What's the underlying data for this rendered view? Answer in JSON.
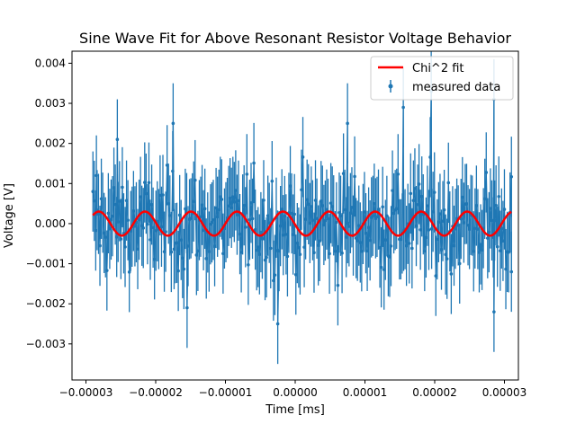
{
  "chart_data": {
    "type": "scatter",
    "title": "Sine Wave Fit for Above Resonant Resistor Voltage Behavior",
    "xlabel": "Time [ms]",
    "ylabel": "Voltage [V]",
    "xlim": [
      -3.2e-05,
      3.2e-05
    ],
    "ylim": [
      -0.0039,
      0.0043
    ],
    "grid": false,
    "legend_position": "top-right",
    "x_ticks": [
      -3e-05,
      -2e-05,
      -1e-05,
      0.0,
      1e-05,
      2e-05,
      3e-05
    ],
    "x_tick_labels": [
      "−0.00003",
      "−0.00002",
      "−0.00001",
      "0.00000",
      "0.00001",
      "0.00002",
      "0.00003"
    ],
    "y_ticks": [
      -0.003,
      -0.002,
      -0.001,
      0.0,
      0.001,
      0.002,
      0.003,
      0.004
    ],
    "y_tick_labels": [
      "−0.003",
      "−0.002",
      "−0.001",
      "0.000",
      "0.001",
      "0.002",
      "0.003",
      "0.004"
    ],
    "series": [
      {
        "name": "Chi^2 fit",
        "kind": "line",
        "color": "#ff0000",
        "model": "sine",
        "amplitude": 0.0003,
        "period": 6.6e-06,
        "phase_time": -2.32e-05,
        "x_range": [
          -2.9e-05,
          3.1e-05
        ]
      },
      {
        "name": "measured data",
        "kind": "errorbar",
        "color": "#1f77b4",
        "y_error": 0.001,
        "x_range": [
          -2.9e-05,
          3.1e-05
        ],
        "count": 300,
        "representative_points": [
          {
            "x": -2.85e-05,
            "y": 0.0012
          },
          {
            "x": -2.55e-05,
            "y": 0.0021
          },
          {
            "x": -1.75e-05,
            "y": 0.0025
          },
          {
            "x": 7.5e-06,
            "y": 0.0025
          },
          {
            "x": 1.55e-05,
            "y": 0.0029
          },
          {
            "x": 1.95e-05,
            "y": 0.0033
          },
          {
            "x": 2.85e-05,
            "y": 0.0031
          },
          {
            "x": -2.5e-06,
            "y": -0.0025
          },
          {
            "x": -1.55e-05,
            "y": -0.0021
          },
          {
            "x": 2.85e-05,
            "y": -0.0022
          },
          {
            "x": 3.1e-05,
            "y": -0.0012
          }
        ]
      }
    ]
  }
}
